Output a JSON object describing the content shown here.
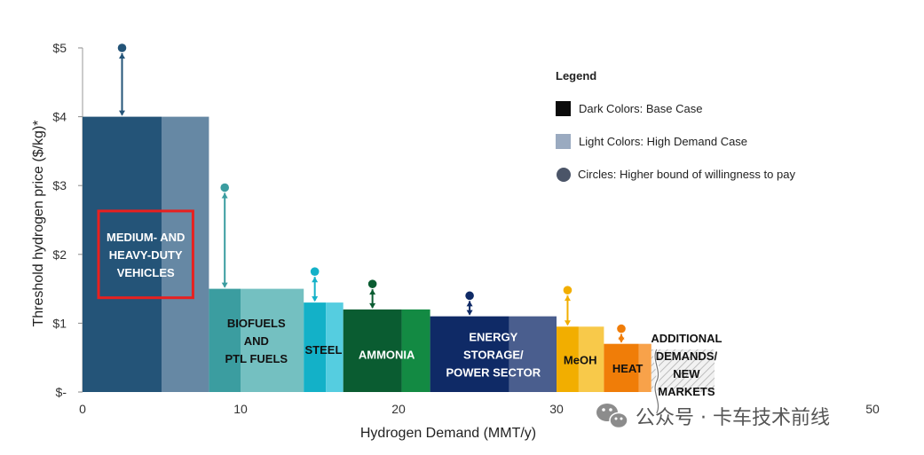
{
  "chart_data": {
    "type": "bar",
    "xlabel": "Hydrogen Demand (MMT/y)",
    "ylabel": "Threshold hydrogen price ($/kg)*",
    "xlim": [
      0,
      50
    ],
    "ylim": [
      0,
      5
    ],
    "xticks": [
      {
        "value": 0,
        "label": "0"
      },
      {
        "value": 10,
        "label": "10"
      },
      {
        "value": 20,
        "label": "20"
      },
      {
        "value": 30,
        "label": "30"
      },
      {
        "value": 50,
        "label": "50"
      }
    ],
    "yticks": [
      {
        "value": 0,
        "label": "$-"
      },
      {
        "value": 1,
        "label": "$1"
      },
      {
        "value": 2,
        "label": "$2"
      },
      {
        "value": 3,
        "label": "$3"
      },
      {
        "value": 4,
        "label": "$4"
      },
      {
        "value": 5,
        "label": "$5"
      }
    ],
    "segments": [
      {
        "name": "MEDIUM- AND HEAVY-DUTY VEHICLES",
        "label_lines": [
          "MEDIUM- AND",
          "HEAVY-DUTY",
          "VEHICLES"
        ],
        "label_color": "#ffffff",
        "label_y": 2.0,
        "base_start": 0,
        "base_end": 5.0,
        "high_end": 8.0,
        "price": 4.0,
        "high_bound": 5.0,
        "color_dark": "#245478",
        "color_light": "#6688a4",
        "highlighted": true
      },
      {
        "name": "BIOFUELS AND PTL FUELS",
        "label_lines": [
          "BIOFUELS",
          "AND",
          "PTL FUELS"
        ],
        "label_color": "#111111",
        "label_y": 0.75,
        "base_start": 8.0,
        "base_end": 10.0,
        "high_end": 14.0,
        "price": 1.5,
        "high_bound": 2.97,
        "color_dark": "#3b9da0",
        "color_light": "#74c0c1"
      },
      {
        "name": "STEEL",
        "label_lines": [
          "STEEL"
        ],
        "label_color": "#111111",
        "label_y": 0.62,
        "base_start": 14.0,
        "base_end": 15.4,
        "high_end": 16.5,
        "price": 1.3,
        "high_bound": 1.75,
        "color_dark": "#13b1c8",
        "color_light": "#55cde0"
      },
      {
        "name": "AMMONIA",
        "label_lines": [
          "AMMONIA"
        ],
        "label_color": "#ffffff",
        "label_y": 0.55,
        "base_start": 16.5,
        "base_end": 20.2,
        "high_end": 22.0,
        "price": 1.2,
        "high_bound": 1.57,
        "color_dark": "#0a5c31",
        "color_light": "#138a43"
      },
      {
        "name": "ENERGY STORAGE/ POWER SECTOR",
        "label_lines": [
          "ENERGY",
          "STORAGE/",
          "POWER SECTOR"
        ],
        "label_color": "#ffffff",
        "label_y": 0.55,
        "base_start": 22.0,
        "base_end": 27.0,
        "high_end": 30.0,
        "price": 1.1,
        "high_bound": 1.4,
        "color_dark": "#0f2a66",
        "color_light": "#4a5e8e"
      },
      {
        "name": "MeOH",
        "label_lines": [
          "MeOH"
        ],
        "label_color": "#111111",
        "label_y": 0.47,
        "base_start": 30.0,
        "base_end": 31.4,
        "high_end": 33.0,
        "price": 0.95,
        "high_bound": 1.48,
        "color_dark": "#f2ae00",
        "color_light": "#f8c94a"
      },
      {
        "name": "HEAT",
        "label_lines": [
          "HEAT"
        ],
        "label_color": "#111111",
        "label_y": 0.35,
        "base_start": 33.0,
        "base_end": 35.2,
        "high_end": 36.0,
        "price": 0.7,
        "high_bound": 0.92,
        "color_dark": "#f07d08",
        "color_light": "#f8a24a"
      },
      {
        "name": "ADDITIONAL DEMANDS/ NEW MARKETS",
        "label_lines": [
          "ADDITIONAL",
          "DEMANDS/",
          "NEW",
          "MARKETS"
        ],
        "label_color": "#111111",
        "label_y": 0.4,
        "base_start": 36.0,
        "base_end": 36.0,
        "high_end": 40.0,
        "price": 0.62,
        "high_bound": null,
        "color_dark": "#e0e0e0",
        "color_light": "#e0e0e0",
        "hatched": true
      }
    ],
    "legend": {
      "title": "Legend",
      "position": "top-right",
      "items": [
        {
          "swatch": "square",
          "color": "#0b0b0b",
          "label": "Dark Colors: Base Case"
        },
        {
          "swatch": "square",
          "color": "#9aaac0",
          "label": "Light Colors: High Demand Case"
        },
        {
          "swatch": "circle",
          "color": "#4b5568",
          "label": "Circles: Higher bound of willingness to pay"
        }
      ]
    },
    "grid": false
  },
  "watermark": {
    "text": "公众号 · 卡车技术前线",
    "icon": "wechat-icon"
  }
}
